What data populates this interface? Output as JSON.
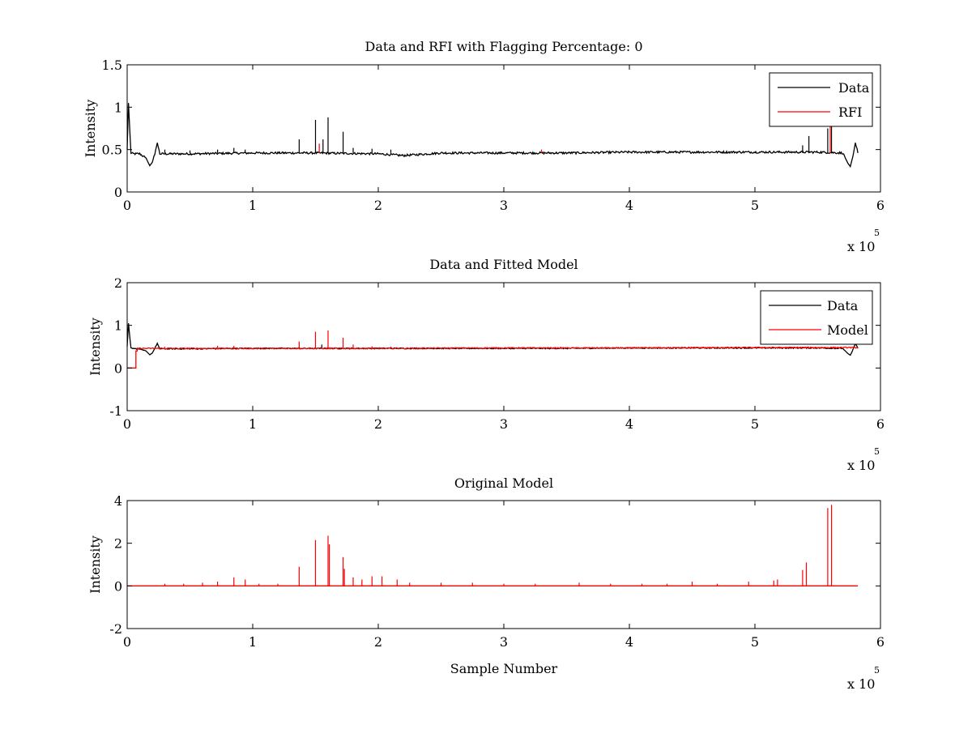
{
  "figure": {
    "background": "#ffffff"
  },
  "chart_data": [
    {
      "type": "line",
      "title": "Data and RFI with Flagging Percentage: 0",
      "xlabel": "",
      "ylabel": "Intensity",
      "xlim": [
        0,
        6
      ],
      "ylim": [
        0,
        1.5
      ],
      "x_multiplier_label": "x 10",
      "x_multiplier_exponent": "5",
      "x_ticks": [
        0,
        1,
        2,
        3,
        4,
        5,
        6
      ],
      "x_tick_labels": [
        "0",
        "1",
        "2",
        "3",
        "4",
        "5",
        "6"
      ],
      "y_ticks": [
        0,
        0.5,
        1,
        1.5
      ],
      "y_tick_labels": [
        "0",
        "0.5",
        "1",
        "1.5"
      ],
      "legend": {
        "position": "top-right",
        "entries": [
          {
            "label": "Data",
            "color": "#000000"
          },
          {
            "label": "RFI",
            "color": "#ff0000"
          }
        ]
      },
      "series": [
        {
          "name": "Data",
          "color": "#000000",
          "baseline": 0.46,
          "x": [
            0,
            0.01,
            0.03,
            0.05,
            0.1,
            0.15,
            0.18,
            0.2,
            0.22,
            0.24,
            0.26,
            0.5,
            1.0,
            1.5,
            2.0,
            2.2,
            2.5,
            3.0,
            3.5,
            4.0,
            4.5,
            5.0,
            5.5,
            5.7,
            5.74,
            5.76,
            5.78,
            5.8,
            5.82
          ],
          "y": [
            0.5,
            1.05,
            0.46,
            0.45,
            0.45,
            0.4,
            0.31,
            0.35,
            0.45,
            0.58,
            0.45,
            0.45,
            0.46,
            0.46,
            0.45,
            0.43,
            0.46,
            0.46,
            0.46,
            0.47,
            0.47,
            0.47,
            0.47,
            0.46,
            0.34,
            0.3,
            0.42,
            0.58,
            0.46
          ],
          "spikes": [
            [
              0.3,
              0.5
            ],
            [
              0.5,
              0.49
            ],
            [
              0.72,
              0.5
            ],
            [
              0.85,
              0.52
            ],
            [
              0.94,
              0.5
            ],
            [
              1.37,
              0.62
            ],
            [
              1.5,
              0.85
            ],
            [
              1.56,
              0.62
            ],
            [
              1.6,
              0.88
            ],
            [
              1.72,
              0.71
            ],
            [
              1.8,
              0.52
            ],
            [
              1.95,
              0.51
            ],
            [
              2.1,
              0.5
            ],
            [
              5.38,
              0.55
            ],
            [
              5.43,
              0.66
            ],
            [
              5.58,
              0.75
            ],
            [
              5.61,
              0.8
            ]
          ]
        },
        {
          "name": "RFI",
          "color": "#ff0000",
          "baseline": 0.46,
          "x": [],
          "y": [],
          "spikes": [
            [
              1.53,
              0.57
            ],
            [
              3.3,
              0.5
            ],
            [
              5.6,
              0.78
            ]
          ]
        }
      ]
    },
    {
      "type": "line",
      "title": "Data and Fitted Model",
      "xlabel": "",
      "ylabel": "Intensity",
      "xlim": [
        0,
        6
      ],
      "ylim": [
        -1,
        2
      ],
      "x_multiplier_label": "x 10",
      "x_multiplier_exponent": "5",
      "x_ticks": [
        0,
        1,
        2,
        3,
        4,
        5,
        6
      ],
      "x_tick_labels": [
        "0",
        "1",
        "2",
        "3",
        "4",
        "5",
        "6"
      ],
      "y_ticks": [
        -1,
        0,
        1,
        2
      ],
      "y_tick_labels": [
        "-1",
        "0",
        "1",
        "2"
      ],
      "legend": {
        "position": "top-right",
        "entries": [
          {
            "label": "Data",
            "color": "#000000"
          },
          {
            "label": "Model",
            "color": "#ff0000"
          }
        ]
      },
      "series": [
        {
          "name": "Data",
          "color": "#000000",
          "baseline": 0.46,
          "x": [
            0,
            0.01,
            0.03,
            0.05,
            0.1,
            0.15,
            0.18,
            0.2,
            0.22,
            0.24,
            0.26,
            0.5,
            1.0,
            1.5,
            2.0,
            2.5,
            3.0,
            3.5,
            4.0,
            4.5,
            5.0,
            5.5,
            5.7,
            5.74,
            5.76,
            5.78,
            5.8,
            5.82
          ],
          "y": [
            0.5,
            1.05,
            0.46,
            0.45,
            0.45,
            0.4,
            0.31,
            0.35,
            0.45,
            0.58,
            0.45,
            0.45,
            0.46,
            0.46,
            0.46,
            0.46,
            0.46,
            0.46,
            0.47,
            0.47,
            0.47,
            0.47,
            0.46,
            0.34,
            0.3,
            0.42,
            0.58,
            0.46
          ],
          "spikes": [
            [
              1.55,
              0.55
            ],
            [
              1.6,
              0.5
            ]
          ]
        },
        {
          "name": "Model",
          "color": "#ff0000",
          "baseline": 0.47,
          "x": [
            0,
            0.07,
            0.07,
            0.08,
            0.08,
            1.0,
            2.0,
            3.0,
            4.0,
            5.0,
            5.82
          ],
          "y": [
            0.0,
            0.0,
            0.4,
            0.4,
            0.46,
            0.46,
            0.46,
            0.47,
            0.47,
            0.48,
            0.48
          ],
          "spikes": [
            [
              0.3,
              0.5
            ],
            [
              0.72,
              0.52
            ],
            [
              0.85,
              0.52
            ],
            [
              1.37,
              0.62
            ],
            [
              1.5,
              0.85
            ],
            [
              1.6,
              0.88
            ],
            [
              1.72,
              0.71
            ],
            [
              1.8,
              0.55
            ],
            [
              1.95,
              0.51
            ],
            [
              2.1,
              0.5
            ]
          ]
        }
      ]
    },
    {
      "type": "line",
      "title": "Original Model",
      "xlabel": "Sample Number",
      "ylabel": "Intensity",
      "xlim": [
        0,
        6
      ],
      "ylim": [
        -2,
        4
      ],
      "x_multiplier_label": "x 10",
      "x_multiplier_exponent": "5",
      "x_ticks": [
        0,
        1,
        2,
        3,
        4,
        5,
        6
      ],
      "x_tick_labels": [
        "0",
        "1",
        "2",
        "3",
        "4",
        "5",
        "6"
      ],
      "y_ticks": [
        -2,
        0,
        2,
        4
      ],
      "y_tick_labels": [
        "-2",
        "0",
        "2",
        "4"
      ],
      "legend": null,
      "series": [
        {
          "color": "#ff0000",
          "baseline": 0.0,
          "x": [
            0,
            5.82
          ],
          "y": [
            0,
            0
          ],
          "spikes": [
            [
              0.3,
              0.1
            ],
            [
              0.45,
              0.1
            ],
            [
              0.6,
              0.15
            ],
            [
              0.72,
              0.2
            ],
            [
              0.85,
              0.4
            ],
            [
              0.94,
              0.3
            ],
            [
              1.05,
              0.1
            ],
            [
              1.2,
              0.1
            ],
            [
              1.37,
              0.9
            ],
            [
              1.5,
              2.15
            ],
            [
              1.6,
              2.35
            ],
            [
              1.61,
              1.95
            ],
            [
              1.72,
              1.35
            ],
            [
              1.73,
              0.8
            ],
            [
              1.8,
              0.4
            ],
            [
              1.87,
              0.3
            ],
            [
              1.95,
              0.45
            ],
            [
              2.03,
              0.45
            ],
            [
              2.15,
              0.3
            ],
            [
              2.25,
              0.15
            ],
            [
              2.5,
              0.15
            ],
            [
              2.75,
              0.15
            ],
            [
              3.0,
              0.1
            ],
            [
              3.25,
              0.1
            ],
            [
              3.6,
              0.15
            ],
            [
              3.85,
              0.1
            ],
            [
              4.1,
              0.1
            ],
            [
              4.3,
              0.1
            ],
            [
              4.5,
              0.2
            ],
            [
              4.7,
              0.1
            ],
            [
              4.95,
              0.2
            ],
            [
              5.15,
              0.25
            ],
            [
              5.18,
              0.3
            ],
            [
              5.38,
              0.75
            ],
            [
              5.41,
              1.1
            ],
            [
              5.58,
              3.65
            ],
            [
              5.61,
              3.8
            ]
          ]
        }
      ]
    }
  ]
}
